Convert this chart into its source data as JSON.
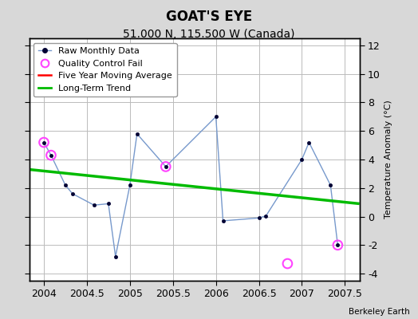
{
  "title": "GOAT'S EYE",
  "subtitle": "51.000 N, 115.500 W (Canada)",
  "ylabel": "Temperature Anomaly (°C)",
  "credit": "Berkeley Earth",
  "xlim": [
    2003.83,
    2007.67
  ],
  "ylim": [
    -4.5,
    12.5
  ],
  "yticks": [
    -4,
    -2,
    0,
    2,
    4,
    6,
    8,
    10,
    12
  ],
  "xticks": [
    2004,
    2004.5,
    2005,
    2005.5,
    2006,
    2006.5,
    2007,
    2007.5
  ],
  "raw_x": [
    2004.0,
    2004.083,
    2004.25,
    2004.333,
    2004.583,
    2004.75,
    2004.833,
    2005.0,
    2005.083,
    2005.417,
    2006.0,
    2006.083,
    2006.5,
    2006.583,
    2007.0,
    2007.083,
    2007.333,
    2007.417
  ],
  "raw_y": [
    5.2,
    4.3,
    2.2,
    1.6,
    0.8,
    0.9,
    -2.8,
    2.2,
    5.8,
    3.5,
    7.0,
    -0.3,
    -0.1,
    0.05,
    4.0,
    5.2,
    2.2,
    -2.0
  ],
  "qc_fail_x": [
    2004.0,
    2004.083,
    2005.417,
    2006.833,
    2007.417
  ],
  "qc_fail_y": [
    5.2,
    4.3,
    3.5,
    -3.3,
    -2.0
  ],
  "trend_x": [
    2003.83,
    2007.67
  ],
  "trend_y": [
    3.3,
    0.9
  ],
  "raw_line_color": "#7799cc",
  "marker_color": "#000033",
  "qc_color": "#ff44ff",
  "trend_color": "#00bb00",
  "moving_avg_color": "#ff0000",
  "bg_color": "#d8d8d8",
  "plot_bg": "#ffffff",
  "grid_color": "#bbbbbb",
  "title_fontsize": 12,
  "subtitle_fontsize": 10,
  "tick_fontsize": 9,
  "legend_fontsize": 8,
  "ylabel_fontsize": 8
}
